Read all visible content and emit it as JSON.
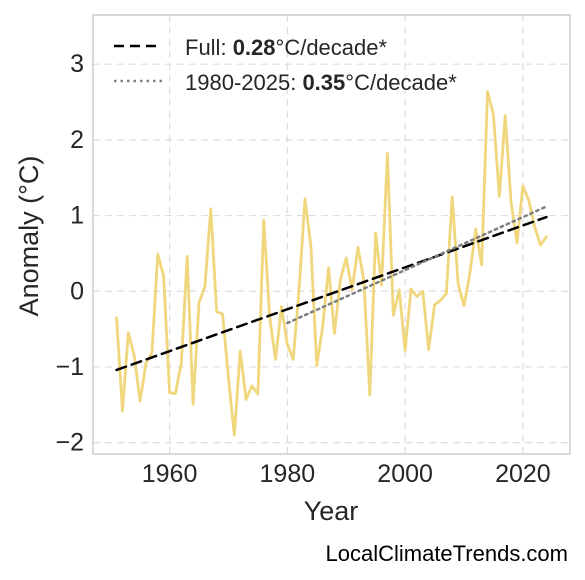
{
  "chart_data": {
    "type": "line",
    "xlabel": "Year",
    "ylabel": "Anomaly (°C)",
    "xlim": [
      1947,
      2028
    ],
    "ylim": [
      -2.15,
      3.65
    ],
    "xticks": [
      1960,
      1980,
      2000,
      2020
    ],
    "yticks": [
      -2,
      -1,
      0,
      1,
      2,
      3
    ],
    "ytick_labels": [
      "−2",
      "−1",
      "0",
      "1",
      "2",
      "3"
    ],
    "grid": true,
    "legend_position": "top-left",
    "colors": {
      "series": "#f0d67c",
      "full_trend": "#000000",
      "recent_trend": "#808080",
      "grid": "#dddddd",
      "frame": "#cccccc"
    },
    "series": [
      {
        "x": [
          1951,
          1952,
          1953,
          1954,
          1955,
          1956,
          1957,
          1958,
          1959,
          1960,
          1961,
          1962,
          1963,
          1964,
          1965,
          1966,
          1967,
          1968,
          1969,
          1970,
          1971,
          1972,
          1973,
          1974,
          1975,
          1976,
          1977,
          1978,
          1979,
          1980,
          1981,
          1982,
          1983,
          1984,
          1985,
          1986,
          1987,
          1988,
          1989,
          1990,
          1991,
          1992,
          1993,
          1994,
          1995,
          1996,
          1997,
          1998,
          1999,
          2000,
          2001,
          2002,
          2003,
          2004,
          2005,
          2006,
          2007,
          2008,
          2009,
          2010,
          2011,
          2012,
          2013,
          2014,
          2015,
          2016,
          2017,
          2018,
          2019,
          2020,
          2021,
          2022,
          2023,
          2024
        ],
        "values": [
          -0.35,
          -1.58,
          -0.55,
          -0.85,
          -1.45,
          -0.95,
          -0.82,
          0.49,
          0.2,
          -1.34,
          -1.35,
          -0.95,
          0.46,
          -1.49,
          -0.15,
          0.06,
          1.09,
          -0.27,
          -0.3,
          -1.14,
          -1.9,
          -0.79,
          -1.43,
          -1.25,
          -1.36,
          0.94,
          -0.34,
          -0.9,
          -0.2,
          -0.7,
          -0.9,
          0.03,
          1.22,
          0.6,
          -0.98,
          -0.47,
          0.31,
          -0.56,
          0.15,
          0.44,
          0.02,
          0.58,
          0.14,
          -1.37,
          0.77,
          0.08,
          1.82,
          -0.32,
          0.02,
          -0.78,
          0.03,
          -0.07,
          0.0,
          -0.77,
          -0.18,
          -0.12,
          -0.03,
          1.25,
          0.1,
          -0.19,
          0.24,
          0.82,
          0.35,
          2.64,
          2.33,
          1.25,
          2.32,
          1.17,
          0.64,
          1.39,
          1.2,
          0.85,
          0.61,
          0.72
        ]
      }
    ],
    "trend_lines": [
      {
        "x": [
          1951,
          2024
        ],
        "values": [
          -1.04,
          0.98
        ],
        "style": "dashed"
      },
      {
        "x": [
          1980,
          2024
        ],
        "values": [
          -0.42,
          1.12
        ],
        "style": "dotted"
      }
    ],
    "legend": [
      {
        "prefix": "Full: ",
        "value": "0.28",
        "suffix": "°C/decade*"
      },
      {
        "prefix": "1980-2025: ",
        "value": "0.35",
        "suffix": "°C/decade*"
      }
    ]
  },
  "watermark": "LocalClimateTrends.com"
}
